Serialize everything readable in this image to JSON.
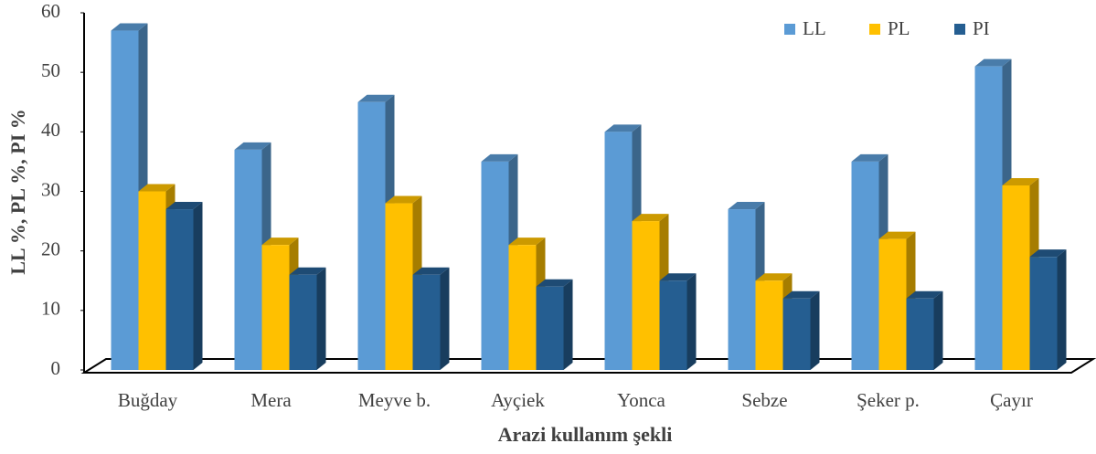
{
  "chart_data": {
    "type": "bar3d",
    "x_label": "Arazi kullanım şekli",
    "y_label": "LL %, PL %, PI %",
    "categories": [
      "Buğday",
      "Mera",
      "Meyve b.",
      "Ayçiek",
      "Yonca",
      "Sebze",
      "Şeker p.",
      "Çayır"
    ],
    "series": [
      {
        "name": "LL",
        "color": "#5b9bd5",
        "values": [
          57,
          37,
          45,
          35,
          40,
          27,
          35,
          51
        ]
      },
      {
        "name": "PL",
        "color": "#ffc000",
        "values": [
          30,
          21,
          28,
          21,
          25,
          15,
          22,
          31
        ]
      },
      {
        "name": "PI",
        "color": "#255e91",
        "values": [
          27,
          16,
          16,
          14,
          15,
          12,
          12,
          19
        ]
      }
    ],
    "ylim": [
      0,
      60
    ],
    "yticks": [
      0,
      10,
      20,
      30,
      40,
      50,
      60
    ],
    "grid": false,
    "legend": "top-right"
  }
}
